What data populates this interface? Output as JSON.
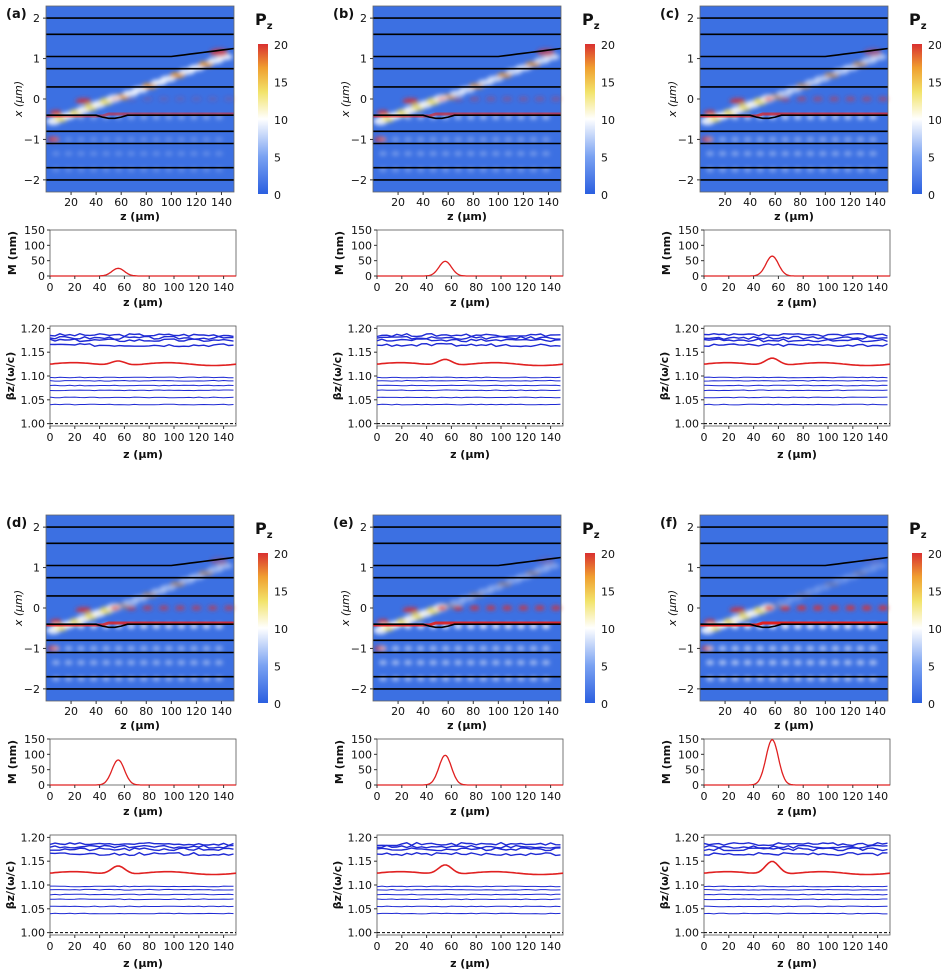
{
  "colorbar": {
    "title": "P",
    "title_sub": "z",
    "ticks": [
      "20",
      "15",
      "10",
      "5",
      "0"
    ],
    "colors": [
      "#2b5fe0",
      "#5c8ef0",
      "#ffffff",
      "#f2e36a",
      "#f0a030",
      "#d93030"
    ]
  },
  "colors": {
    "field_background": "#3c70e2",
    "guide_line": "#000000",
    "mode_line": "#1f2ad4",
    "perturbed_mode": "#e02020",
    "gauss_curve": "#e02020"
  },
  "axes": {
    "map_ylabel": "x (μm)",
    "map_xlabel": "z (μm)",
    "map_yticks": [
      "2",
      "1",
      "0",
      "−1",
      "−2"
    ],
    "map_xticks": [
      "20",
      "40",
      "60",
      "80",
      "100",
      "120",
      "140"
    ],
    "m_ylabel": "M (nm)",
    "m_yticks": [
      "150",
      "100",
      "50",
      "0"
    ],
    "z_xlabel": "z (μm)",
    "z_xticks": [
      "0",
      "20",
      "40",
      "60",
      "80",
      "100",
      "120",
      "140"
    ],
    "beta_ylabel": "βz/(ω/c)",
    "beta_yticks": [
      "1.20",
      "1.15",
      "1.10",
      "1.05",
      "1.00"
    ]
  },
  "chart_data": {
    "type": "multi-panel",
    "description_units": {
      "z": "μm",
      "x": "μm",
      "M": "nm",
      "beta": "βz/(ω/c)"
    },
    "panels": [
      {
        "label": "(a)",
        "m_peak_nm": 25
      },
      {
        "label": "(b)",
        "m_peak_nm": 48
      },
      {
        "label": "(c)",
        "m_peak_nm": 65
      },
      {
        "label": "(d)",
        "m_peak_nm": 82
      },
      {
        "label": "(e)",
        "m_peak_nm": 97
      },
      {
        "label": "(f)",
        "m_peak_nm": 148
      }
    ],
    "gauss_center_um": 55,
    "gauss_sigma_um": 5,
    "map": {
      "xlim": [
        0,
        150
      ],
      "ylim": [
        -2.3,
        2.3
      ],
      "clim": [
        0,
        20
      ]
    },
    "m_plot": {
      "xlim": [
        0,
        150
      ],
      "ylim": [
        0,
        150
      ]
    },
    "beta_plot": {
      "xlim": [
        0,
        150
      ],
      "ylim": [
        0.995,
        1.205
      ],
      "mode_levels": [
        1.186,
        1.18,
        1.175,
        1.165,
        1.097,
        1.09,
        1.08,
        1.07,
        1.055,
        1.04
      ],
      "perturbed_level": 1.125,
      "reference_dashed": 1.0
    },
    "guides_x_um": [
      2.0,
      1.6,
      1.05,
      0.75,
      0.3,
      -0.4,
      -0.8,
      -1.1,
      -1.7,
      -2.0
    ]
  }
}
